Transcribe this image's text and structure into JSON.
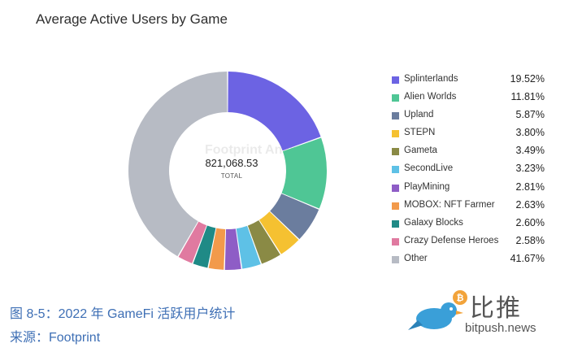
{
  "header": {
    "title": "Average Active Users by Game"
  },
  "center": {
    "value": "821,068.53",
    "label": "TOTAL"
  },
  "watermark": "Footprint Analytics",
  "caption": "图 8-5：2022 年 GameFi 活跃用户统计",
  "source": "来源：Footprint",
  "logo": {
    "text": "比推",
    "url": "bitpush.news"
  },
  "chart_data": {
    "type": "pie",
    "donut": true,
    "total_label": "TOTAL",
    "total": 821068.53,
    "legend_position": "right",
    "slices": [
      {
        "label": "Splinterlands",
        "value": 19.52,
        "display": "19.52%",
        "color": "#6c63e3"
      },
      {
        "label": "Alien Worlds",
        "value": 11.81,
        "display": "11.81%",
        "color": "#4fc695"
      },
      {
        "label": "Upland",
        "value": 5.87,
        "display": "5.87%",
        "color": "#6b7d9e"
      },
      {
        "label": "STEPN",
        "value": 3.8,
        "display": "3.80%",
        "color": "#f5c131"
      },
      {
        "label": "Gameta",
        "value": 3.49,
        "display": "3.49%",
        "color": "#8a8a45"
      },
      {
        "label": "SecondLive",
        "value": 3.23,
        "display": "3.23%",
        "color": "#5ec1e6"
      },
      {
        "label": "PlayMining",
        "value": 2.81,
        "display": "2.81%",
        "color": "#8e5dc6"
      },
      {
        "label": "MOBOX: NFT Farmer",
        "value": 2.63,
        "display": "2.63%",
        "color": "#f29a4b"
      },
      {
        "label": "Galaxy Blocks",
        "value": 2.6,
        "display": "2.60%",
        "color": "#1f8a86"
      },
      {
        "label": "Crazy Defense Heroes",
        "value": 2.58,
        "display": "2.58%",
        "color": "#e07aa0"
      },
      {
        "label": "Other",
        "value": 41.67,
        "display": "41.67%",
        "color": "#b7bbc4"
      }
    ]
  }
}
